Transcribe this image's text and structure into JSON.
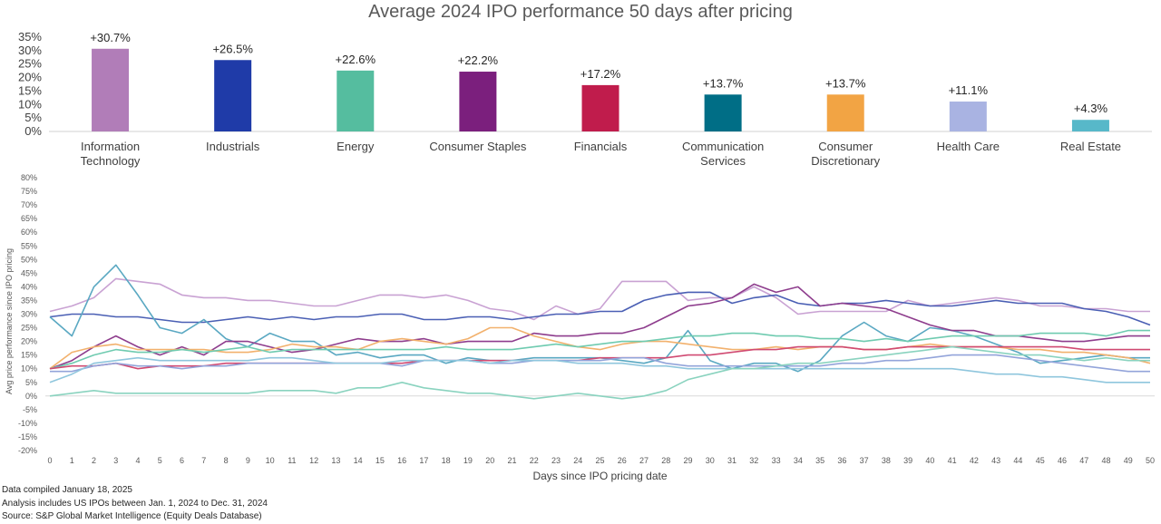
{
  "chart_data": [
    {
      "type": "bar",
      "title": "Average 2024 IPO performance 50 days after pricing",
      "categories": [
        "Information Technology",
        "Industrials",
        "Energy",
        "Consumer Staples",
        "Financials",
        "Communication Services",
        "Consumer Discretionary",
        "Health Care",
        "Real Estate"
      ],
      "values": [
        30.7,
        26.5,
        22.6,
        22.2,
        17.2,
        13.7,
        13.7,
        11.1,
        4.3
      ],
      "data_labels": [
        "+30.7%",
        "+26.5%",
        "+22.6%",
        "+22.2%",
        "+17.2%",
        "+13.7%",
        "+13.7%",
        "+11.1%",
        "+4.3%"
      ],
      "colors": [
        "#b17db8",
        "#1f3ba8",
        "#55bd9f",
        "#7b1f7d",
        "#c01c4c",
        "#006e86",
        "#f2a444",
        "#a9b3e2",
        "#57b8c9"
      ],
      "ylim": [
        0,
        35
      ],
      "yticks": [
        "0%",
        "5%",
        "10%",
        "15%",
        "20%",
        "25%",
        "30%",
        "35%"
      ],
      "grid": false,
      "legend": "none"
    },
    {
      "type": "line",
      "xlabel": "Days since IPO pricing date",
      "ylabel": "Avg price performance since IPO pricing",
      "ylim": [
        -20,
        80
      ],
      "yticks": [
        "-20%",
        "-15%",
        "-10%",
        "-5%",
        "0%",
        "5%",
        "10%",
        "15%",
        "20%",
        "25%",
        "30%",
        "35%",
        "40%",
        "45%",
        "50%",
        "55%",
        "60%",
        "65%",
        "70%",
        "75%",
        "80%"
      ],
      "x": [
        0,
        1,
        2,
        3,
        4,
        5,
        6,
        7,
        8,
        9,
        10,
        11,
        12,
        13,
        14,
        15,
        16,
        17,
        18,
        19,
        20,
        21,
        22,
        23,
        24,
        25,
        26,
        27,
        28,
        29,
        30,
        31,
        32,
        33,
        34,
        35,
        36,
        37,
        38,
        39,
        40,
        41,
        42,
        43,
        44,
        45,
        46,
        47,
        48,
        49,
        50
      ],
      "grid": false,
      "legend": "none",
      "series": [
        {
          "color": "#c9a2d3",
          "values": [
            31,
            33,
            36,
            43,
            42,
            41,
            37,
            36,
            36,
            35,
            35,
            34,
            33,
            33,
            35,
            37,
            37,
            36,
            37,
            35,
            32,
            31,
            28,
            33,
            30,
            32,
            42,
            42,
            42,
            35,
            36,
            36,
            40,
            36,
            30,
            31,
            31,
            31,
            31,
            35,
            33,
            34,
            35,
            36,
            35,
            33,
            33,
            32,
            32,
            31,
            31
          ]
        },
        {
          "color": "#4a5fb4",
          "values": [
            29,
            30,
            30,
            29,
            29,
            28,
            27,
            27,
            28,
            29,
            28,
            29,
            28,
            29,
            29,
            30,
            30,
            28,
            28,
            29,
            29,
            28,
            29,
            30,
            30,
            31,
            31,
            35,
            37,
            38,
            38,
            34,
            36,
            37,
            34,
            33,
            34,
            34,
            35,
            34,
            33,
            33,
            34,
            35,
            34,
            34,
            34,
            32,
            31,
            29,
            26
          ]
        },
        {
          "color": "#5aa8c2",
          "values": [
            29,
            22,
            40,
            48,
            37,
            25,
            23,
            28,
            21,
            18,
            23,
            20,
            20,
            15,
            16,
            14,
            15,
            15,
            12,
            14,
            13,
            13,
            14,
            14,
            14,
            14,
            13,
            12,
            14,
            24,
            13,
            10,
            12,
            12,
            9,
            13,
            22,
            27,
            22,
            20,
            25,
            24,
            22,
            19,
            16,
            12,
            13,
            14,
            15,
            14,
            14
          ]
        },
        {
          "color": "#8e3d8d",
          "values": [
            10,
            13,
            18,
            22,
            18,
            15,
            18,
            15,
            20,
            20,
            18,
            16,
            17,
            19,
            21,
            20,
            20,
            21,
            19,
            20,
            20,
            20,
            23,
            22,
            22,
            23,
            23,
            25,
            29,
            33,
            34,
            36,
            41,
            38,
            40,
            33,
            34,
            33,
            32,
            29,
            26,
            24,
            24,
            22,
            22,
            21,
            20,
            20,
            21,
            22,
            22
          ]
        },
        {
          "color": "#f2b16d",
          "values": [
            10,
            16,
            18,
            19,
            17,
            17,
            17,
            17,
            16,
            16,
            17,
            19,
            18,
            18,
            17,
            20,
            21,
            20,
            19,
            21,
            25,
            25,
            22,
            20,
            18,
            17,
            19,
            20,
            20,
            19,
            18,
            17,
            17,
            18,
            17,
            18,
            18,
            17,
            17,
            18,
            19,
            18,
            18,
            18,
            17,
            17,
            16,
            16,
            15,
            14,
            12
          ]
        },
        {
          "color": "#6fcbb0",
          "values": [
            10,
            12,
            15,
            17,
            16,
            16,
            17,
            16,
            17,
            18,
            16,
            17,
            17,
            17,
            17,
            17,
            17,
            17,
            18,
            17,
            17,
            17,
            18,
            19,
            18,
            19,
            20,
            20,
            21,
            22,
            22,
            23,
            23,
            22,
            22,
            21,
            21,
            20,
            21,
            20,
            21,
            22,
            22,
            22,
            22,
            23,
            23,
            23,
            22,
            24,
            24
          ]
        },
        {
          "color": "#d04a72",
          "values": [
            10,
            11,
            11,
            12,
            10,
            11,
            11,
            11,
            12,
            12,
            12,
            12,
            12,
            12,
            12,
            12,
            12,
            13,
            13,
            13,
            13,
            13,
            13,
            13,
            13,
            14,
            14,
            14,
            14,
            15,
            15,
            16,
            17,
            17,
            18,
            18,
            18,
            17,
            17,
            18,
            18,
            18,
            18,
            18,
            18,
            18,
            18,
            17,
            17,
            17,
            17
          ]
        },
        {
          "color": "#93a4da",
          "values": [
            9,
            9,
            11,
            12,
            11,
            11,
            10,
            11,
            11,
            12,
            12,
            12,
            12,
            12,
            12,
            12,
            11,
            13,
            13,
            13,
            12,
            12,
            13,
            13,
            13,
            13,
            14,
            14,
            12,
            11,
            11,
            11,
            11,
            11,
            11,
            11,
            12,
            12,
            13,
            13,
            14,
            15,
            15,
            15,
            14,
            13,
            12,
            11,
            10,
            9,
            9
          ]
        },
        {
          "color": "#8fc6dd",
          "values": [
            5,
            8,
            12,
            13,
            14,
            13,
            13,
            13,
            13,
            13,
            14,
            14,
            13,
            12,
            12,
            12,
            13,
            13,
            13,
            13,
            12,
            13,
            13,
            13,
            12,
            12,
            12,
            11,
            11,
            10,
            10,
            10,
            10,
            10,
            10,
            10,
            10,
            10,
            10,
            10,
            10,
            10,
            9,
            8,
            8,
            7,
            7,
            6,
            5,
            5,
            5
          ]
        },
        {
          "color": "#8ad3bf",
          "values": [
            0,
            1,
            2,
            1,
            1,
            1,
            1,
            1,
            1,
            1,
            2,
            2,
            2,
            1,
            3,
            3,
            5,
            3,
            2,
            1,
            1,
            0,
            -1,
            0,
            1,
            0,
            -1,
            0,
            2,
            6,
            8,
            10,
            10,
            11,
            12,
            12,
            13,
            14,
            15,
            16,
            17,
            18,
            17,
            16,
            15,
            15,
            14,
            13,
            14,
            13,
            13
          ]
        }
      ]
    }
  ],
  "notes": [
    "Data compiled January 18, 2025",
    "Analysis includes US IPOs between Jan. 1, 2024 to Dec. 31, 2024",
    "Source: S&P Global Market Intelligence (Equity Deals Database)"
  ]
}
